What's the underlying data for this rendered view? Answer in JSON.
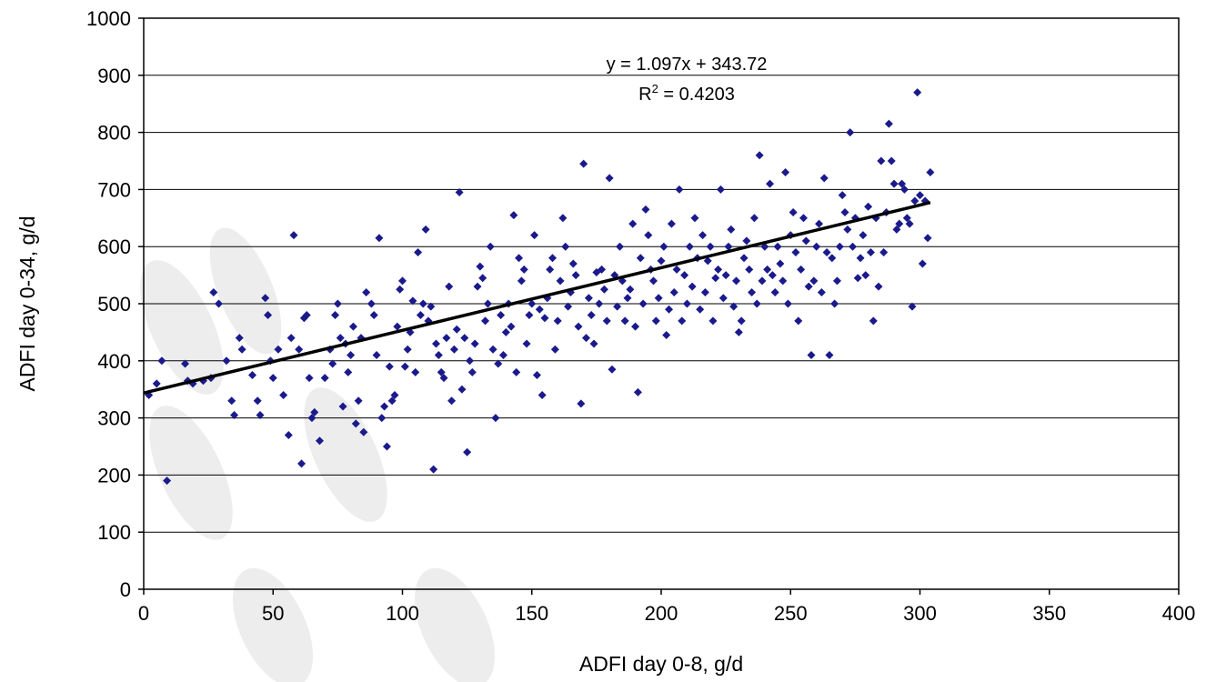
{
  "chart_data": {
    "type": "scatter",
    "title": "",
    "xlabel": "ADFI day 0-8, g/d",
    "ylabel": "ADFI day 0-34, g/d",
    "xlim": [
      0,
      400
    ],
    "ylim": [
      0,
      1000
    ],
    "x_ticks": [
      "0",
      "50",
      "100",
      "150",
      "200",
      "250",
      "300",
      "350",
      "400"
    ],
    "y_ticks": [
      "0",
      "100",
      "200",
      "300",
      "400",
      "500",
      "600",
      "700",
      "800",
      "900",
      "1000"
    ],
    "grid": "horizontal",
    "legend": "none",
    "marker_color": "#1a1a8c",
    "trendline": {
      "slope": 1.097,
      "intercept": 343.72,
      "equation": "y = 1.097x + 343.72",
      "r2_label": "R",
      "r2_sup": "2",
      "r2_value": " = 0.4203",
      "color": "#000000"
    },
    "points": [
      [
        2,
        340
      ],
      [
        5,
        360
      ],
      [
        7,
        400
      ],
      [
        9,
        190
      ],
      [
        16,
        395
      ],
      [
        17,
        365
      ],
      [
        19,
        360
      ],
      [
        23,
        365
      ],
      [
        26,
        370
      ],
      [
        27,
        520
      ],
      [
        29,
        500
      ],
      [
        32,
        400
      ],
      [
        34,
        330
      ],
      [
        35,
        305
      ],
      [
        37,
        440
      ],
      [
        38,
        420
      ],
      [
        42,
        375
      ],
      [
        44,
        330
      ],
      [
        45,
        305
      ],
      [
        47,
        510
      ],
      [
        48,
        480
      ],
      [
        49,
        400
      ],
      [
        50,
        370
      ],
      [
        52,
        420
      ],
      [
        54,
        340
      ],
      [
        56,
        270
      ],
      [
        57,
        440
      ],
      [
        58,
        620
      ],
      [
        60,
        420
      ],
      [
        61,
        220
      ],
      [
        62,
        475
      ],
      [
        63,
        480
      ],
      [
        64,
        370
      ],
      [
        65,
        300
      ],
      [
        66,
        310
      ],
      [
        68,
        260
      ],
      [
        70,
        370
      ],
      [
        72,
        420
      ],
      [
        73,
        395
      ],
      [
        74,
        480
      ],
      [
        75,
        500
      ],
      [
        76,
        440
      ],
      [
        77,
        320
      ],
      [
        78,
        430
      ],
      [
        79,
        380
      ],
      [
        80,
        410
      ],
      [
        81,
        460
      ],
      [
        82,
        290
      ],
      [
        83,
        330
      ],
      [
        84,
        440
      ],
      [
        85,
        275
      ],
      [
        86,
        520
      ],
      [
        88,
        500
      ],
      [
        89,
        480
      ],
      [
        90,
        410
      ],
      [
        91,
        615
      ],
      [
        92,
        300
      ],
      [
        93,
        320
      ],
      [
        94,
        250
      ],
      [
        95,
        390
      ],
      [
        96,
        330
      ],
      [
        97,
        340
      ],
      [
        98,
        460
      ],
      [
        99,
        525
      ],
      [
        100,
        540
      ],
      [
        101,
        390
      ],
      [
        102,
        420
      ],
      [
        103,
        450
      ],
      [
        104,
        505
      ],
      [
        105,
        380
      ],
      [
        106,
        590
      ],
      [
        107,
        480
      ],
      [
        108,
        500
      ],
      [
        109,
        630
      ],
      [
        110,
        470
      ],
      [
        111,
        495
      ],
      [
        112,
        210
      ],
      [
        113,
        430
      ],
      [
        114,
        410
      ],
      [
        115,
        380
      ],
      [
        116,
        370
      ],
      [
        117,
        440
      ],
      [
        118,
        530
      ],
      [
        119,
        330
      ],
      [
        120,
        420
      ],
      [
        121,
        455
      ],
      [
        122,
        695
      ],
      [
        123,
        350
      ],
      [
        124,
        440
      ],
      [
        125,
        240
      ],
      [
        126,
        400
      ],
      [
        127,
        380
      ],
      [
        128,
        430
      ],
      [
        129,
        530
      ],
      [
        130,
        565
      ],
      [
        131,
        545
      ],
      [
        132,
        470
      ],
      [
        133,
        500
      ],
      [
        134,
        600
      ],
      [
        135,
        420
      ],
      [
        136,
        300
      ],
      [
        137,
        395
      ],
      [
        138,
        480
      ],
      [
        139,
        410
      ],
      [
        140,
        450
      ],
      [
        141,
        500
      ],
      [
        142,
        460
      ],
      [
        143,
        655
      ],
      [
        144,
        380
      ],
      [
        145,
        580
      ],
      [
        146,
        540
      ],
      [
        147,
        560
      ],
      [
        148,
        430
      ],
      [
        149,
        480
      ],
      [
        150,
        500
      ],
      [
        151,
        620
      ],
      [
        152,
        375
      ],
      [
        153,
        490
      ],
      [
        154,
        340
      ],
      [
        155,
        475
      ],
      [
        156,
        510
      ],
      [
        157,
        560
      ],
      [
        158,
        580
      ],
      [
        159,
        420
      ],
      [
        160,
        470
      ],
      [
        161,
        540
      ],
      [
        162,
        650
      ],
      [
        163,
        600
      ],
      [
        164,
        495
      ],
      [
        165,
        520
      ],
      [
        166,
        570
      ],
      [
        167,
        550
      ],
      [
        168,
        460
      ],
      [
        169,
        325
      ],
      [
        170,
        745
      ],
      [
        171,
        440
      ],
      [
        172,
        510
      ],
      [
        173,
        480
      ],
      [
        174,
        430
      ],
      [
        175,
        555
      ],
      [
        176,
        500
      ],
      [
        177,
        560
      ],
      [
        178,
        525
      ],
      [
        179,
        470
      ],
      [
        180,
        720
      ],
      [
        181,
        385
      ],
      [
        182,
        550
      ],
      [
        183,
        495
      ],
      [
        184,
        600
      ],
      [
        185,
        540
      ],
      [
        186,
        470
      ],
      [
        187,
        510
      ],
      [
        188,
        525
      ],
      [
        189,
        640
      ],
      [
        190,
        460
      ],
      [
        191,
        345
      ],
      [
        192,
        580
      ],
      [
        193,
        500
      ],
      [
        194,
        665
      ],
      [
        195,
        620
      ],
      [
        196,
        560
      ],
      [
        197,
        540
      ],
      [
        198,
        470
      ],
      [
        199,
        510
      ],
      [
        200,
        575
      ],
      [
        201,
        600
      ],
      [
        202,
        445
      ],
      [
        203,
        490
      ],
      [
        204,
        640
      ],
      [
        205,
        520
      ],
      [
        206,
        560
      ],
      [
        207,
        700
      ],
      [
        208,
        470
      ],
      [
        209,
        550
      ],
      [
        210,
        500
      ],
      [
        211,
        600
      ],
      [
        212,
        530
      ],
      [
        213,
        650
      ],
      [
        214,
        580
      ],
      [
        215,
        490
      ],
      [
        216,
        620
      ],
      [
        217,
        520
      ],
      [
        218,
        575
      ],
      [
        219,
        600
      ],
      [
        220,
        470
      ],
      [
        221,
        545
      ],
      [
        222,
        560
      ],
      [
        223,
        700
      ],
      [
        224,
        510
      ],
      [
        225,
        550
      ],
      [
        226,
        600
      ],
      [
        227,
        630
      ],
      [
        228,
        495
      ],
      [
        229,
        540
      ],
      [
        230,
        450
      ],
      [
        231,
        470
      ],
      [
        232,
        580
      ],
      [
        233,
        610
      ],
      [
        234,
        560
      ],
      [
        235,
        520
      ],
      [
        236,
        650
      ],
      [
        237,
        500
      ],
      [
        238,
        760
      ],
      [
        239,
        540
      ],
      [
        240,
        600
      ],
      [
        241,
        560
      ],
      [
        242,
        710
      ],
      [
        243,
        550
      ],
      [
        244,
        520
      ],
      [
        245,
        600
      ],
      [
        246,
        570
      ],
      [
        247,
        540
      ],
      [
        248,
        730
      ],
      [
        249,
        500
      ],
      [
        250,
        620
      ],
      [
        251,
        660
      ],
      [
        252,
        590
      ],
      [
        253,
        470
      ],
      [
        254,
        560
      ],
      [
        255,
        650
      ],
      [
        256,
        610
      ],
      [
        257,
        530
      ],
      [
        258,
        410
      ],
      [
        259,
        540
      ],
      [
        260,
        600
      ],
      [
        261,
        640
      ],
      [
        262,
        520
      ],
      [
        263,
        720
      ],
      [
        264,
        590
      ],
      [
        265,
        410
      ],
      [
        266,
        580
      ],
      [
        267,
        500
      ],
      [
        268,
        540
      ],
      [
        269,
        600
      ],
      [
        270,
        690
      ],
      [
        271,
        660
      ],
      [
        272,
        630
      ],
      [
        273,
        800
      ],
      [
        274,
        600
      ],
      [
        275,
        650
      ],
      [
        276,
        545
      ],
      [
        277,
        580
      ],
      [
        278,
        620
      ],
      [
        279,
        550
      ],
      [
        280,
        670
      ],
      [
        281,
        590
      ],
      [
        282,
        470
      ],
      [
        283,
        650
      ],
      [
        284,
        530
      ],
      [
        285,
        750
      ],
      [
        286,
        590
      ],
      [
        287,
        660
      ],
      [
        288,
        815
      ],
      [
        289,
        750
      ],
      [
        290,
        710
      ],
      [
        291,
        630
      ],
      [
        292,
        640
      ],
      [
        293,
        710
      ],
      [
        294,
        700
      ],
      [
        295,
        650
      ],
      [
        296,
        640
      ],
      [
        297,
        495
      ],
      [
        298,
        680
      ],
      [
        299,
        870
      ],
      [
        300,
        690
      ],
      [
        301,
        570
      ],
      [
        302,
        680
      ],
      [
        303,
        615
      ],
      [
        304,
        730
      ]
    ]
  }
}
